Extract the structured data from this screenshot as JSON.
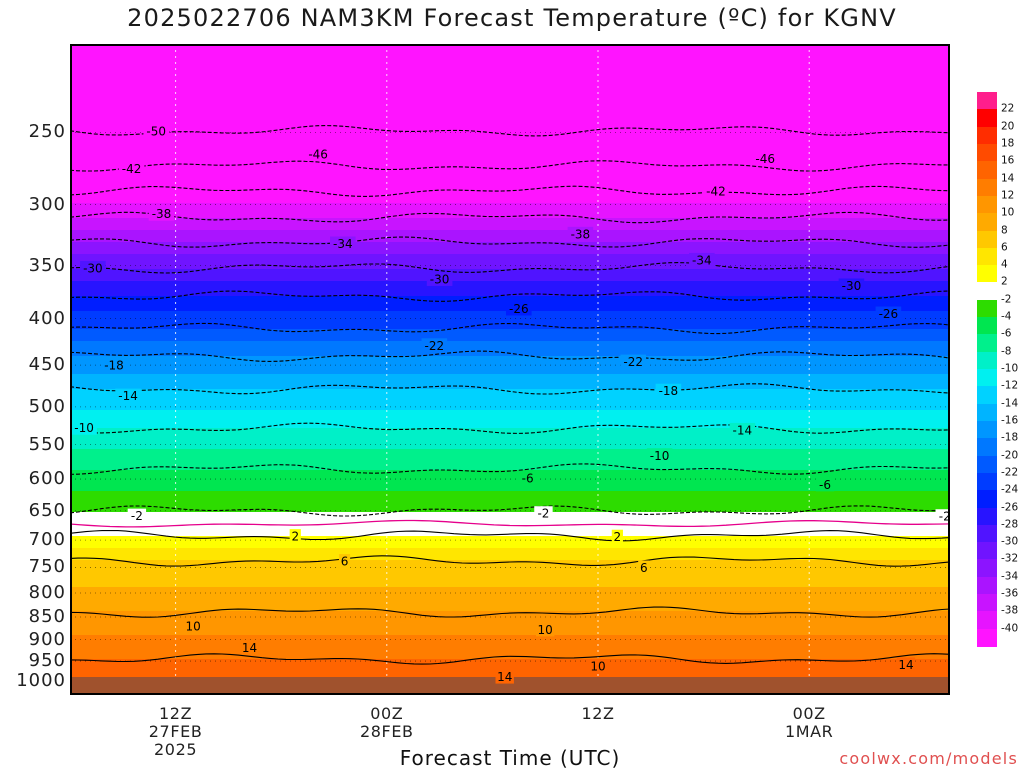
{
  "page": {
    "title": "2025022706 NAM3KM Forecast Temperature (ºC) for KGNV",
    "x_axis_label": "Forecast Time (UTC)",
    "credit": "coolwx.com/models"
  },
  "chart_data": {
    "type": "heatmap",
    "title": "2025022706 NAM3KM Forecast Temperature (ºC) for KGNV",
    "xlabel": "Forecast Time (UTC)",
    "ylabel": "",
    "y_scale": "log-pressure",
    "y_range": [
      1035,
      200
    ],
    "y_ticks": [
      {
        "value": 250,
        "label": "250"
      },
      {
        "value": 300,
        "label": "300"
      },
      {
        "value": 350,
        "label": "350"
      },
      {
        "value": 400,
        "label": "400"
      },
      {
        "value": 450,
        "label": "450"
      },
      {
        "value": 500,
        "label": "500"
      },
      {
        "value": 550,
        "label": "550"
      },
      {
        "value": 600,
        "label": "600"
      },
      {
        "value": 650,
        "label": "650"
      },
      {
        "value": 700,
        "label": "700"
      },
      {
        "value": 750,
        "label": "750"
      },
      {
        "value": 800,
        "label": "800"
      },
      {
        "value": 850,
        "label": "850"
      },
      {
        "value": 900,
        "label": "900"
      },
      {
        "value": 950,
        "label": "950"
      },
      {
        "value": 1000,
        "label": "1000"
      }
    ],
    "x_range_hours": [
      6,
      56
    ],
    "x_ticks": [
      {
        "hour": 12,
        "lines": [
          "12Z",
          "27FEB",
          "2025"
        ]
      },
      {
        "hour": 24,
        "lines": [
          "00Z",
          "28FEB"
        ]
      },
      {
        "hour": 36,
        "lines": [
          "12Z"
        ]
      },
      {
        "hour": 48,
        "lines": [
          "00Z",
          "1MAR"
        ]
      },
      {
        "hour": 60,
        "lines": [
          "12Z"
        ]
      }
    ],
    "contour_interval": 4,
    "isotherms": [
      {
        "temp": -50,
        "p": 249
      },
      {
        "temp": -46,
        "p": 272
      },
      {
        "temp": -42,
        "p": 290
      },
      {
        "temp": -38,
        "p": 310
      },
      {
        "temp": -34,
        "p": 330
      },
      {
        "temp": -30,
        "p": 352
      },
      {
        "temp": -26,
        "p": 378
      },
      {
        "temp": -22,
        "p": 410
      },
      {
        "temp": -18,
        "p": 440
      },
      {
        "temp": -14,
        "p": 478
      },
      {
        "temp": -10,
        "p": 528
      },
      {
        "temp": -6,
        "p": 585
      },
      {
        "temp": -2,
        "p": 650
      },
      {
        "temp": 2,
        "p": 692
      },
      {
        "temp": 6,
        "p": 738
      },
      {
        "temp": 10,
        "p": 840
      },
      {
        "temp": 14,
        "p": 945
      }
    ],
    "contour_labels": [
      {
        "hour": 10.9,
        "p": 249,
        "text": "-50"
      },
      {
        "hour": 20.1,
        "p": 264,
        "text": "-46"
      },
      {
        "hour": 45.5,
        "p": 267,
        "text": "-46"
      },
      {
        "hour": 9.5,
        "p": 274,
        "text": "-42"
      },
      {
        "hour": 42.7,
        "p": 290,
        "text": "-42"
      },
      {
        "hour": 11.2,
        "p": 307,
        "text": "-38"
      },
      {
        "hour": 35.0,
        "p": 323,
        "text": "-38"
      },
      {
        "hour": 21.5,
        "p": 331,
        "text": "-34"
      },
      {
        "hour": 41.9,
        "p": 345,
        "text": "-34"
      },
      {
        "hour": 7.3,
        "p": 352,
        "text": "-30"
      },
      {
        "hour": 27.0,
        "p": 362,
        "text": "-30"
      },
      {
        "hour": 50.4,
        "p": 368,
        "text": "-30"
      },
      {
        "hour": 31.5,
        "p": 390,
        "text": "-26"
      },
      {
        "hour": 52.5,
        "p": 395,
        "text": "-26"
      },
      {
        "hour": 26.7,
        "p": 428,
        "text": "-22"
      },
      {
        "hour": 38.0,
        "p": 446,
        "text": "-22"
      },
      {
        "hour": 8.5,
        "p": 450,
        "text": "-18"
      },
      {
        "hour": 40.0,
        "p": 480,
        "text": "-18"
      },
      {
        "hour": 9.3,
        "p": 486,
        "text": "-14"
      },
      {
        "hour": 44.2,
        "p": 530,
        "text": "-14"
      },
      {
        "hour": 6.8,
        "p": 527,
        "text": "-10"
      },
      {
        "hour": 39.5,
        "p": 565,
        "text": "-10"
      },
      {
        "hour": 56.0,
        "p": 577,
        "text": "-10"
      },
      {
        "hour": 32.0,
        "p": 598,
        "text": "-6"
      },
      {
        "hour": 48.9,
        "p": 608,
        "text": "-6"
      },
      {
        "hour": 9.8,
        "p": 658,
        "text": "-2"
      },
      {
        "hour": 32.9,
        "p": 654,
        "text": "-2"
      },
      {
        "hour": 55.7,
        "p": 659,
        "text": "-2"
      },
      {
        "hour": 18.8,
        "p": 693,
        "text": "2"
      },
      {
        "hour": 37.1,
        "p": 694,
        "text": "2"
      },
      {
        "hour": 56.5,
        "p": 706,
        "text": "2"
      },
      {
        "hour": 21.6,
        "p": 738,
        "text": "6"
      },
      {
        "hour": 38.6,
        "p": 750,
        "text": "6"
      },
      {
        "hour": 57.5,
        "p": 770,
        "text": "6"
      },
      {
        "hour": 13.0,
        "p": 870,
        "text": "10"
      },
      {
        "hour": 33.0,
        "p": 877,
        "text": "10"
      },
      {
        "hour": 36.0,
        "p": 962,
        "text": "10"
      },
      {
        "hour": 56.2,
        "p": 857,
        "text": "10"
      },
      {
        "hour": 16.2,
        "p": 918,
        "text": "14"
      },
      {
        "hour": 30.7,
        "p": 988,
        "text": "14"
      },
      {
        "hour": 53.5,
        "p": 958,
        "text": "14"
      }
    ],
    "colorbar": {
      "labels": [
        "22",
        "20",
        "18",
        "16",
        "14",
        "12",
        "10",
        "8",
        "6",
        "4",
        "2",
        "-2",
        "-4",
        "-6",
        "-8",
        "-10",
        "-12",
        "-14",
        "-16",
        "-18",
        "-20",
        "-22",
        "-24",
        "-26",
        "-28",
        "-30",
        "-32",
        "-34",
        "-36",
        "-38",
        "-40"
      ],
      "colors": [
        "#ff1e8c",
        "#ff0000",
        "#ff2d00",
        "#ff4b00",
        "#ff6400",
        "#ff7d00",
        "#ff9600",
        "#ffaa00",
        "#ffc800",
        "#ffe600",
        "#ffff00",
        "#ffffff",
        "#2ddc00",
        "#00e650",
        "#00f08c",
        "#00f0c8",
        "#00f0f0",
        "#00d2ff",
        "#00b4ff",
        "#0096ff",
        "#0078ff",
        "#005aff",
        "#003cff",
        "#001eff",
        "#2814ff",
        "#5014ff",
        "#7014ff",
        "#8c14ff",
        "#aa14ff",
        "#c814ff",
        "#e614ff",
        "#ff14ff"
      ]
    },
    "ground_color": "#a0522d",
    "grid": true
  }
}
